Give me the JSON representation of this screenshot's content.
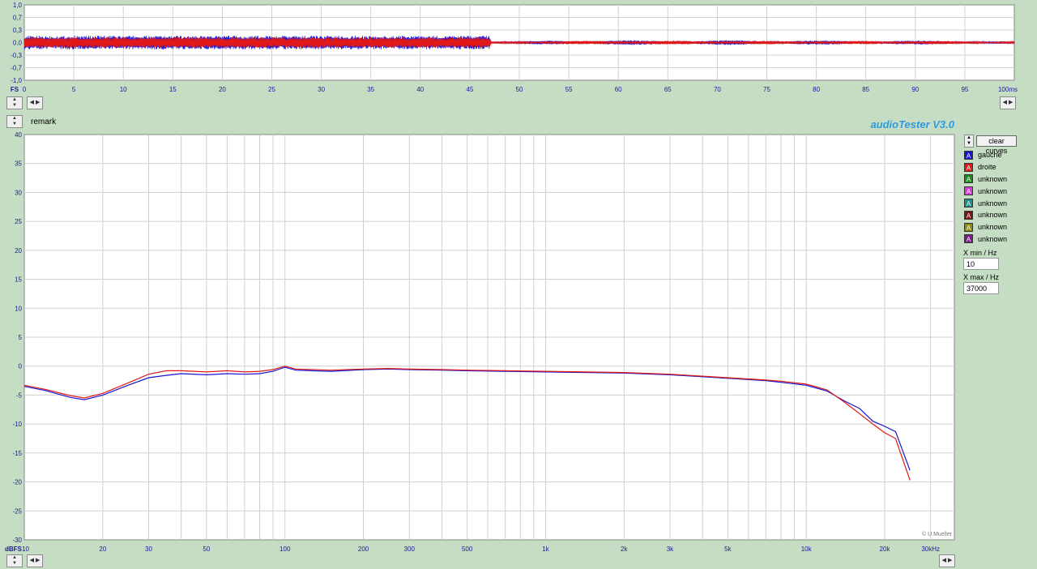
{
  "osc": {
    "unit_label": "FS",
    "y_ticks": [
      "1,0",
      "0,7",
      "0,3",
      "0,0",
      "-0,3",
      "-0,7",
      "-1,0"
    ],
    "x_ticks": [
      "0",
      "5",
      "10",
      "15",
      "20",
      "25",
      "30",
      "35",
      "40",
      "45",
      "50",
      "55",
      "60",
      "65",
      "70",
      "75",
      "80",
      "85",
      "90",
      "95",
      "100ms"
    ]
  },
  "remark_label": "remark",
  "brand": "audioTester  V3.0",
  "clear_label": "clear curves",
  "legend": [
    {
      "label": "gauche",
      "color": "#1515d8"
    },
    {
      "label": "droite",
      "color": "#e01818"
    },
    {
      "label": "unknown",
      "color": "#1c8a1c"
    },
    {
      "label": "unknown",
      "color": "#d83ad8"
    },
    {
      "label": "unknown",
      "color": "#1f8c8c"
    },
    {
      "label": "unknown",
      "color": "#7a1414"
    },
    {
      "label": "unknown",
      "color": "#8e8a12"
    },
    {
      "label": "unknown",
      "color": "#7a1c8a"
    }
  ],
  "legend_glyph": "A",
  "xmin_label": "X min / Hz",
  "xmin_value": "10",
  "xmax_label": "X max / Hz",
  "xmax_value": "37000",
  "credit": "© U.Mueller",
  "chart_data": [
    {
      "type": "line",
      "xlabel": "ms",
      "ylabel": "FS",
      "xlim": [
        0,
        100
      ],
      "ylim": [
        -1,
        1
      ],
      "series": [
        {
          "name": "gauche",
          "envelope": [
            {
              "x": 0,
              "amp": 0.18
            },
            {
              "x": 47,
              "amp": 0.18
            },
            {
              "x": 47.2,
              "amp": 0.03
            },
            {
              "x": 55,
              "amp": 0.06
            },
            {
              "x": 66,
              "amp": 0.06
            },
            {
              "x": 75,
              "amp": 0.06
            },
            {
              "x": 84,
              "amp": 0.05
            },
            {
              "x": 93,
              "amp": 0.05
            },
            {
              "x": 100,
              "amp": 0.03
            }
          ]
        },
        {
          "name": "droite",
          "envelope": [
            {
              "x": 0,
              "amp": 0.14
            },
            {
              "x": 47,
              "amp": 0.14
            },
            {
              "x": 47.2,
              "amp": 0.03
            },
            {
              "x": 59,
              "amp": 0.05
            },
            {
              "x": 70,
              "amp": 0.05
            },
            {
              "x": 80,
              "amp": 0.04
            },
            {
              "x": 89,
              "amp": 0.05
            },
            {
              "x": 100,
              "amp": 0.03
            }
          ]
        }
      ]
    },
    {
      "type": "line",
      "xlabel": "Hz",
      "ylabel": "dBFS",
      "x_scale": "log",
      "xlim": [
        10,
        37000
      ],
      "ylim": [
        -30,
        40
      ],
      "y_ticks": [
        "40",
        "35",
        "30",
        "25",
        "20",
        "15",
        "10",
        "5",
        "0",
        "-5",
        "-10",
        "-15",
        "-20",
        "-25",
        "-30"
      ],
      "x_tick_labels": [
        {
          "x": 20,
          "label": "20"
        },
        {
          "x": 30,
          "label": "30"
        },
        {
          "x": 50,
          "label": "50"
        },
        {
          "x": 100,
          "label": "100"
        },
        {
          "x": 200,
          "label": "200"
        },
        {
          "x": 300,
          "label": "300"
        },
        {
          "x": 500,
          "label": "500"
        },
        {
          "x": 1000,
          "label": "1k"
        },
        {
          "x": 2000,
          "label": "2k"
        },
        {
          "x": 3000,
          "label": "3k"
        },
        {
          "x": 5000,
          "label": "5k"
        },
        {
          "x": 10000,
          "label": "10k"
        },
        {
          "x": 20000,
          "label": "20k"
        },
        {
          "x": 30000,
          "label": "30kHz"
        }
      ],
      "corner_labels": {
        "y_unit": "dBFS",
        "x_start": "10"
      },
      "series": [
        {
          "name": "gauche",
          "x": [
            10,
            12,
            15,
            17,
            20,
            25,
            30,
            35,
            40,
            50,
            60,
            70,
            80,
            90,
            100,
            110,
            150,
            200,
            250,
            300,
            400,
            500,
            700,
            1000,
            2000,
            3000,
            5000,
            7000,
            8000,
            10000,
            12000,
            14000,
            16000,
            18000,
            20000,
            22000,
            25000
          ],
          "y": [
            -3.5,
            -4.2,
            -5.4,
            -5.8,
            -5.0,
            -3.3,
            -2.0,
            -1.6,
            -1.3,
            -1.5,
            -1.3,
            -1.4,
            -1.3,
            -0.9,
            -0.2,
            -0.7,
            -0.9,
            -0.6,
            -0.5,
            -0.6,
            -0.7,
            -0.8,
            -0.9,
            -1.0,
            -1.2,
            -1.5,
            -2.1,
            -2.5,
            -2.8,
            -3.3,
            -4.3,
            -6.0,
            -7.3,
            -9.5,
            -10.4,
            -11.3,
            -18.0
          ]
        },
        {
          "name": "droite",
          "x": [
            10,
            12,
            15,
            17,
            20,
            25,
            30,
            35,
            40,
            50,
            60,
            70,
            80,
            90,
            100,
            110,
            150,
            200,
            250,
            300,
            400,
            500,
            700,
            1000,
            2000,
            3000,
            5000,
            7000,
            8000,
            10000,
            12000,
            14000,
            16000,
            18000,
            20000,
            22000,
            25000
          ],
          "y": [
            -3.3,
            -4.0,
            -5.1,
            -5.5,
            -4.7,
            -2.9,
            -1.4,
            -0.8,
            -0.8,
            -1.0,
            -0.8,
            -1.0,
            -0.9,
            -0.6,
            0.0,
            -0.5,
            -0.7,
            -0.5,
            -0.4,
            -0.5,
            -0.6,
            -0.7,
            -0.8,
            -0.9,
            -1.1,
            -1.4,
            -2.0,
            -2.4,
            -2.6,
            -3.1,
            -4.1,
            -6.2,
            -8.2,
            -10.0,
            -11.5,
            -12.5,
            -19.7
          ]
        }
      ]
    }
  ]
}
